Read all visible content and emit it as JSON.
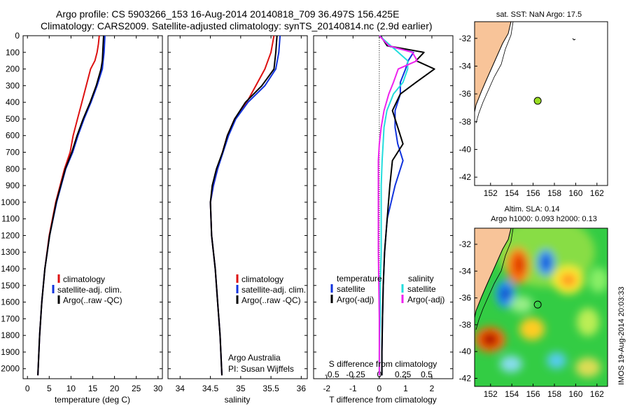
{
  "header": {
    "title_line1": "Argo profile: CS 5903266_153 16-Aug-2014 20140818_709 36.497S 156.425E",
    "title_line2": "Climatology: CARS2009. Satellite-adjusted climatology: synTS_20140814.nc (2.9d earlier)"
  },
  "colors": {
    "climatology": "#dd1111",
    "satellite": "#1133dd",
    "argo": "#000000",
    "satellite_s": "#22dddd",
    "argo_s": "#ee22ee",
    "land": "#f8c499",
    "argo_marker": "#99dd22"
  },
  "chart_data": [
    {
      "id": "temperature",
      "type": "line",
      "xlabel": "temperature (deg C)",
      "ylabel": "",
      "xlim": [
        -1,
        31
      ],
      "ylim": [
        2060,
        0
      ],
      "xticks": [
        0,
        5,
        10,
        15,
        20,
        25,
        30
      ],
      "yticks": [
        0,
        100,
        200,
        300,
        400,
        500,
        600,
        700,
        800,
        900,
        1000,
        1100,
        1200,
        1300,
        1400,
        1500,
        1600,
        1700,
        1800,
        1900,
        2000
      ],
      "legend": [
        "climatology",
        "satellite-adj. clim.",
        "Argo(..raw -QC)"
      ],
      "series": [
        {
          "name": "climatology",
          "color": "#dd1111",
          "x": [
            16.5,
            16.3,
            16.0,
            15.5,
            14.5,
            13.5,
            12.5,
            11.5,
            10.5,
            9.8,
            8.5,
            6.5,
            5.0,
            4.0,
            3.3,
            2.8,
            2.4
          ],
          "y": [
            0,
            50,
            100,
            150,
            200,
            300,
            400,
            500,
            600,
            700,
            800,
            1000,
            1200,
            1400,
            1600,
            1800,
            2040
          ]
        },
        {
          "name": "satellite-adj. clim.",
          "color": "#1133dd",
          "x": [
            17.8,
            17.7,
            17.6,
            17.4,
            17.2,
            16.0,
            14.6,
            13.0,
            11.6,
            10.4,
            8.8,
            6.7,
            5.1,
            4.0,
            3.3,
            2.8,
            2.4
          ],
          "y": [
            0,
            50,
            100,
            150,
            200,
            300,
            400,
            500,
            600,
            700,
            800,
            1000,
            1200,
            1400,
            1600,
            1800,
            2040
          ]
        },
        {
          "name": "Argo(..raw -QC)",
          "color": "#000000",
          "x": [
            17.5,
            17.4,
            17.3,
            17.2,
            16.9,
            15.8,
            14.4,
            12.8,
            11.4,
            10.2,
            8.7,
            6.6,
            5.1,
            4.0,
            3.3,
            2.8,
            2.4
          ],
          "y": [
            0,
            50,
            100,
            150,
            200,
            300,
            400,
            500,
            600,
            700,
            800,
            1000,
            1200,
            1400,
            1600,
            1800,
            2040
          ]
        }
      ]
    },
    {
      "id": "salinity",
      "type": "line",
      "xlabel": "salinity",
      "ylabel": "",
      "xlim": [
        33.8,
        36.1
      ],
      "ylim": [
        2060,
        0
      ],
      "xticks": [
        34,
        34.5,
        35,
        35.5,
        36
      ],
      "legend": [
        "climatology",
        "satellite-adj. clim.",
        "Argo(..raw -QC)"
      ],
      "annotation": [
        "Argo Australia",
        "PI: Susan Wijffels"
      ],
      "series": [
        {
          "name": "climatology",
          "color": "#dd1111",
          "x": [
            35.55,
            35.5,
            35.4,
            35.25,
            35.1,
            34.9,
            34.78,
            34.7,
            34.62,
            34.55,
            34.5,
            34.52,
            34.58,
            34.62,
            34.66,
            34.69
          ],
          "y": [
            0,
            100,
            200,
            300,
            400,
            500,
            600,
            700,
            800,
            900,
            1000,
            1200,
            1400,
            1600,
            1800,
            2040
          ]
        },
        {
          "name": "satellite-adj. clim.",
          "color": "#1133dd",
          "x": [
            35.65,
            35.63,
            35.58,
            35.4,
            35.12,
            34.92,
            34.8,
            34.71,
            34.62,
            34.55,
            34.5,
            34.52,
            34.58,
            34.62,
            34.66,
            34.69
          ],
          "y": [
            0,
            100,
            200,
            300,
            400,
            500,
            600,
            700,
            800,
            900,
            1000,
            1200,
            1400,
            1600,
            1800,
            2040
          ]
        },
        {
          "name": "Argo(..raw -QC)",
          "color": "#000000",
          "x": [
            35.6,
            35.58,
            35.55,
            35.35,
            35.08,
            34.9,
            34.78,
            34.7,
            34.6,
            34.53,
            34.5,
            34.52,
            34.58,
            34.62,
            34.66,
            34.69
          ],
          "y": [
            0,
            100,
            200,
            300,
            400,
            500,
            600,
            700,
            800,
            900,
            1000,
            1200,
            1400,
            1600,
            1800,
            2040
          ]
        }
      ]
    },
    {
      "id": "differences",
      "type": "line",
      "xlabel": "T difference from climatology",
      "xlabel_top": "S difference from climatology",
      "xlim": [
        -2.5,
        2.8
      ],
      "ylim": [
        2060,
        0
      ],
      "xticks": [
        -2,
        -1,
        0,
        1,
        2
      ],
      "xticks_s": [
        -0.5,
        -0.25,
        0,
        0.25,
        0.5
      ],
      "legend_t_title": "temperature",
      "legend_s_title": "salinity",
      "legend": [
        "satellite",
        "Argo(-adj)",
        "satellite",
        "Argo(-adj)"
      ],
      "series": [
        {
          "name": "T satellite",
          "color": "#1133dd",
          "x": [
            0.05,
            0.3,
            1.3,
            1.1,
            1.0,
            0.8,
            0.8,
            0.6,
            0.6,
            0.7,
            0.9,
            0.6,
            0.3,
            0.2,
            0.15,
            0.12,
            0.1,
            0.1
          ],
          "y": [
            0,
            60,
            100,
            150,
            200,
            280,
            350,
            450,
            550,
            650,
            750,
            900,
            1100,
            1300,
            1500,
            1700,
            1900,
            2040
          ]
        },
        {
          "name": "T Argo(-adj)",
          "color": "#000000",
          "x": [
            0.05,
            0.3,
            1.7,
            1.4,
            2.1,
            1.4,
            0.8,
            0.5,
            0.7,
            0.9,
            0.5,
            0.4,
            0.3,
            0.2,
            0.15,
            0.12,
            0.1,
            0.1
          ],
          "y": [
            0,
            60,
            100,
            150,
            200,
            280,
            350,
            450,
            550,
            650,
            750,
            900,
            1100,
            1300,
            1500,
            1700,
            1900,
            2040
          ]
        },
        {
          "name": "S satellite",
          "color": "#22dddd",
          "x": [
            0.0,
            0.12,
            0.2,
            0.3,
            0.3,
            0.25,
            0.15,
            0.08,
            0.05,
            0.04,
            0.03,
            0.02,
            0.02,
            0.02,
            0.01,
            0.01,
            0.0,
            0.0
          ],
          "y": [
            0,
            60,
            100,
            150,
            200,
            280,
            350,
            450,
            550,
            650,
            750,
            900,
            1100,
            1300,
            1500,
            1700,
            1900,
            2040
          ]
        },
        {
          "name": "S Argo(-adj)",
          "color": "#ee22ee",
          "x": [
            0.0,
            0.1,
            0.35,
            0.4,
            0.2,
            0.15,
            0.1,
            0.05,
            0.02,
            0.0,
            -0.01,
            -0.01,
            -0.01,
            -0.01,
            -0.005,
            0.0,
            0.0,
            0.0
          ],
          "y": [
            0,
            60,
            100,
            150,
            200,
            280,
            350,
            450,
            550,
            650,
            750,
            900,
            1100,
            1300,
            1500,
            1700,
            1900,
            2040
          ]
        }
      ]
    }
  ],
  "map_top": {
    "title": "sat. SST: NaN Argo: 17.5",
    "xlim": [
      150.5,
      163
    ],
    "ylim": [
      -42.6,
      -30.8
    ],
    "xticks": [
      152,
      154,
      156,
      158,
      160,
      162
    ],
    "yticks": [
      -32,
      -34,
      -36,
      -38,
      -40,
      -42
    ],
    "argo_lon": 156.43,
    "argo_lat": -36.5
  },
  "map_bottom": {
    "title_line1": "Altim. SLA: 0.14",
    "title_line2": "Argo h1000: 0.093 h2000: 0.13",
    "xlim": [
      150.5,
      163
    ],
    "ylim": [
      -42.6,
      -30.8
    ],
    "xticks": [
      152,
      154,
      156,
      158,
      160,
      162
    ],
    "yticks": [
      -32,
      -34,
      -36,
      -38,
      -40,
      -42
    ],
    "argo_lon": 156.43,
    "argo_lat": -36.5,
    "credit": "IMOS 19-Aug-2014 20:03:33"
  }
}
